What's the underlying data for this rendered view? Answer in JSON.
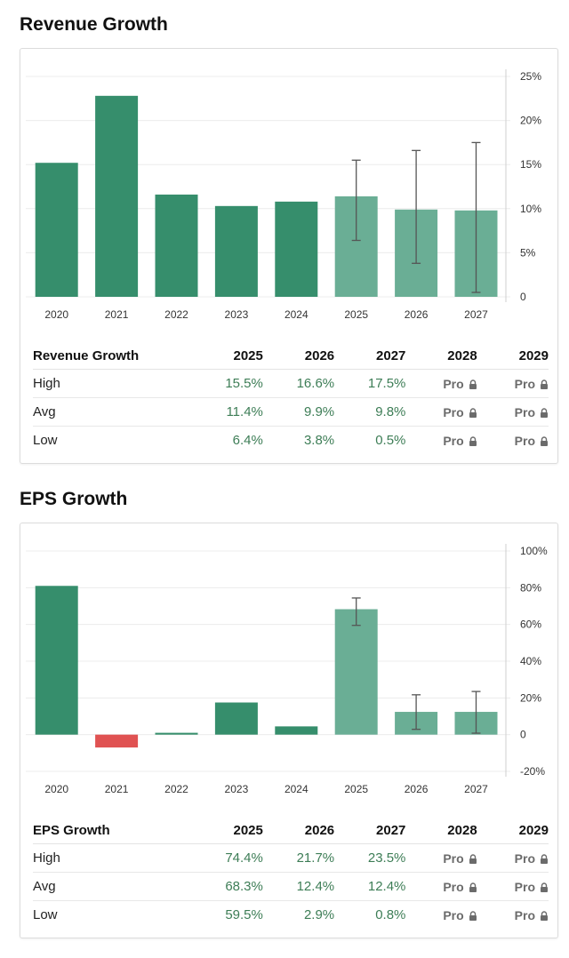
{
  "sections": {
    "revenue": {
      "title": "Revenue Growth",
      "table": {
        "header": [
          "Revenue Growth",
          "2025",
          "2026",
          "2027",
          "2028",
          "2029"
        ],
        "rows": [
          {
            "label": "High",
            "cells": [
              "15.5%",
              "16.6%",
              "17.5%",
              "Pro",
              "Pro"
            ]
          },
          {
            "label": "Avg",
            "cells": [
              "11.4%",
              "9.9%",
              "9.8%",
              "Pro",
              "Pro"
            ]
          },
          {
            "label": "Low",
            "cells": [
              "6.4%",
              "3.8%",
              "0.5%",
              "Pro",
              "Pro"
            ]
          }
        ]
      }
    },
    "eps": {
      "title": "EPS Growth",
      "table": {
        "header": [
          "EPS Growth",
          "2025",
          "2026",
          "2027",
          "2028",
          "2029"
        ],
        "rows": [
          {
            "label": "High",
            "cells": [
              "74.4%",
              "21.7%",
              "23.5%",
              "Pro",
              "Pro"
            ]
          },
          {
            "label": "Avg",
            "cells": [
              "68.3%",
              "12.4%",
              "12.4%",
              "Pro",
              "Pro"
            ]
          },
          {
            "label": "Low",
            "cells": [
              "59.5%",
              "2.9%",
              "0.8%",
              "Pro",
              "Pro"
            ]
          }
        ]
      }
    }
  },
  "chart_data": [
    {
      "type": "bar",
      "title": "Revenue Growth",
      "categories": [
        "2020",
        "2021",
        "2022",
        "2023",
        "2024",
        "2025",
        "2026",
        "2027"
      ],
      "values": [
        15.2,
        22.8,
        11.6,
        10.3,
        10.8,
        11.4,
        9.9,
        9.8
      ],
      "forecast_from_index": 5,
      "error_bars": [
        null,
        null,
        null,
        null,
        null,
        {
          "low": 6.4,
          "high": 15.5
        },
        {
          "low": 3.8,
          "high": 16.6
        },
        {
          "low": 0.5,
          "high": 17.5
        }
      ],
      "ylim": [
        0,
        25
      ],
      "yticks": [
        0,
        5,
        10,
        15,
        20,
        25
      ],
      "ytick_labels": [
        "0",
        "5%",
        "10%",
        "15%",
        "20%",
        "25%"
      ],
      "colors": {
        "actual": "#368e6c",
        "forecast": "#6aae95",
        "negative": "#e05252"
      },
      "grid": true,
      "axis_position": "right"
    },
    {
      "type": "bar",
      "title": "EPS Growth",
      "categories": [
        "2020",
        "2021",
        "2022",
        "2023",
        "2024",
        "2025",
        "2026",
        "2027"
      ],
      "values": [
        81,
        -7,
        1,
        17.5,
        4.5,
        68.3,
        12.4,
        12.4
      ],
      "forecast_from_index": 5,
      "error_bars": [
        null,
        null,
        null,
        null,
        null,
        {
          "low": 59.5,
          "high": 74.4
        },
        {
          "low": 2.9,
          "high": 21.7
        },
        {
          "low": 0.8,
          "high": 23.5
        }
      ],
      "ylim": [
        -20,
        100
      ],
      "yticks": [
        -20,
        0,
        20,
        40,
        60,
        80,
        100
      ],
      "ytick_labels": [
        "-20%",
        "0",
        "20%",
        "40%",
        "60%",
        "80%",
        "100%"
      ],
      "colors": {
        "actual": "#368e6c",
        "forecast": "#6aae95",
        "negative": "#e05252"
      },
      "grid": true,
      "axis_position": "right"
    }
  ]
}
